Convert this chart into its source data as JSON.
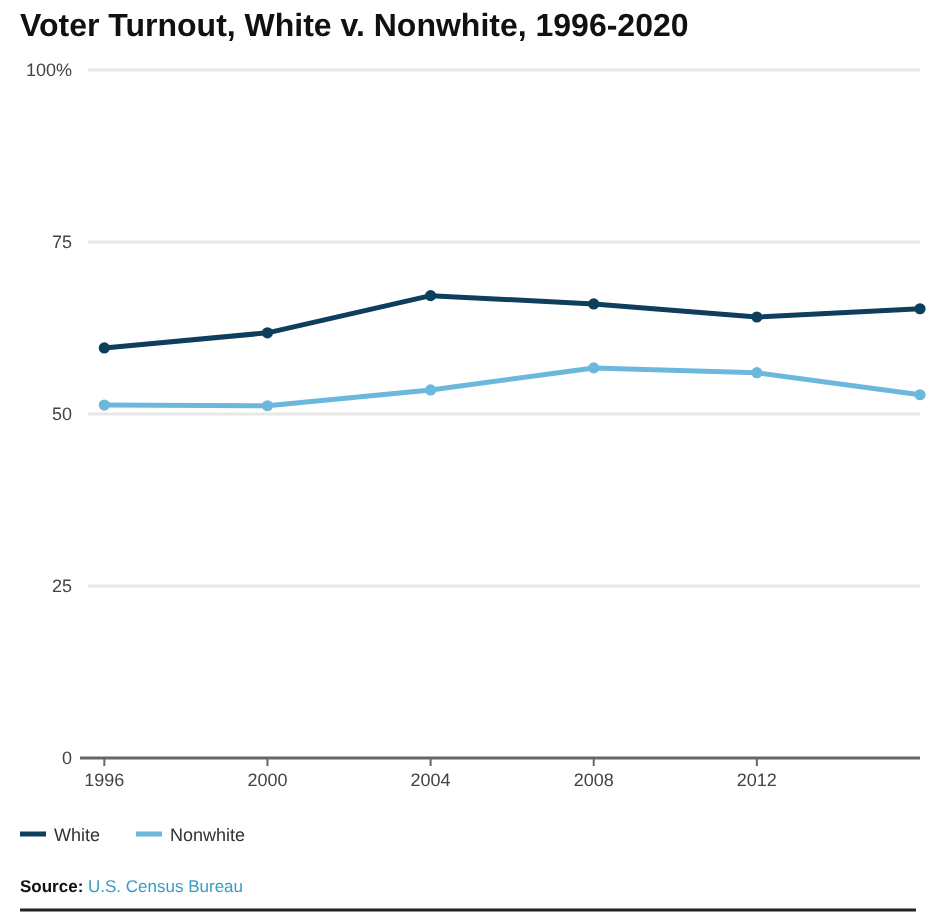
{
  "chart_data": {
    "type": "line",
    "title": "Voter Turnout, White v. Nonwhite, 1996-2020",
    "x": [
      1996,
      2000,
      2004,
      2008,
      2012,
      2016
    ],
    "series": [
      {
        "name": "White",
        "color": "#0d3f5c",
        "values": [
          59.6,
          61.8,
          67.2,
          66.0,
          64.1,
          65.3
        ]
      },
      {
        "name": "Nonwhite",
        "color": "#6bb8dc",
        "values": [
          51.3,
          51.2,
          53.5,
          56.7,
          56.0,
          52.8
        ]
      }
    ],
    "xlim": [
      1995.6,
      2016
    ],
    "xticks": [
      1996,
      2000,
      2004,
      2008,
      2012
    ],
    "ylim": [
      0,
      100
    ],
    "yticks": [
      0,
      25,
      50,
      75,
      {
        "value": 100,
        "label": "100%"
      }
    ],
    "grid": "y",
    "legend": "bottom left",
    "marker": "circle",
    "line_style": "solid",
    "annotations": [
      "Source: U.S. Census Bureau"
    ]
  }
}
